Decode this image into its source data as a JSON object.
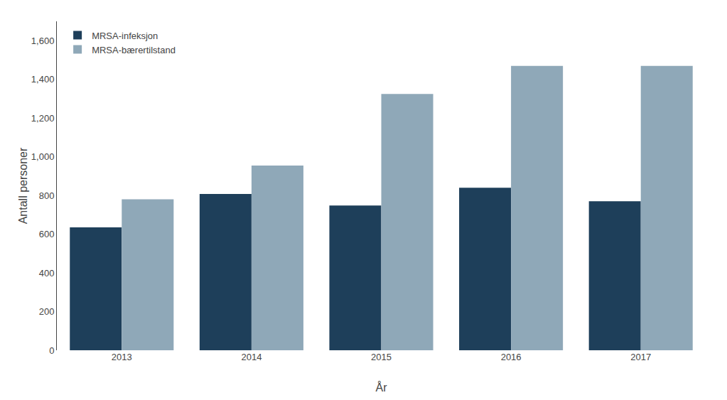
{
  "chart_data": {
    "type": "bar",
    "categories": [
      "2013",
      "2014",
      "2015",
      "2016",
      "2017"
    ],
    "series": [
      {
        "name": "MRSA-infeksjon",
        "color": "#1e3f5a",
        "values": [
          635,
          808,
          748,
          840,
          770
        ]
      },
      {
        "name": "MRSA-bærertilstand",
        "color": "#8fa8b8",
        "values": [
          780,
          955,
          1325,
          1470,
          1470
        ]
      }
    ],
    "xlabel": "År",
    "ylabel": "Antall personer",
    "ylim": [
      0,
      1700
    ],
    "yticks": [
      0,
      200,
      400,
      600,
      800,
      {
        "value": 1000,
        "label": "1,000"
      },
      {
        "value": 1200,
        "label": "1,200"
      },
      {
        "value": 1400,
        "label": "1,400"
      },
      {
        "value": 1600,
        "label": "1,600"
      }
    ],
    "grid": false,
    "legend": "upper left"
  }
}
